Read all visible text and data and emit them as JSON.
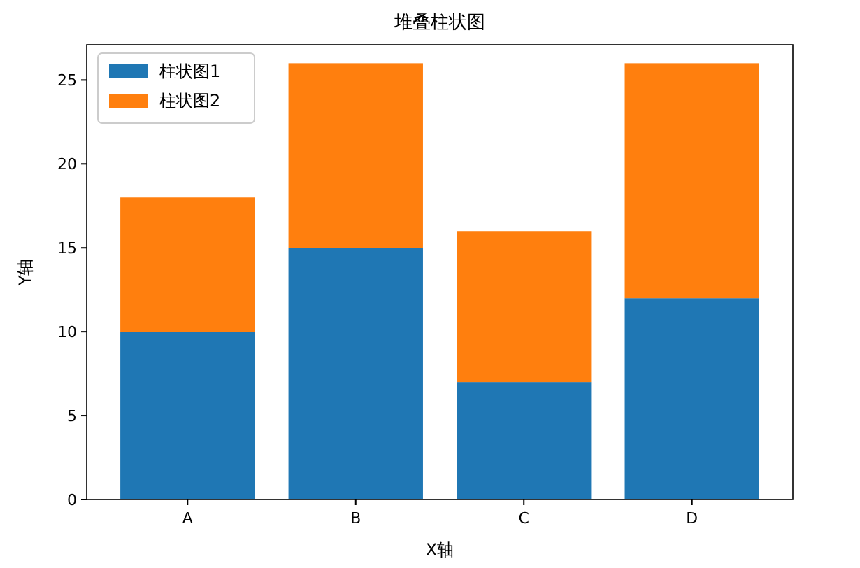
{
  "chart_data": {
    "type": "bar",
    "title": "堆叠柱状图",
    "xlabel": "X轴",
    "ylabel": "Y轴",
    "categories": [
      "A",
      "B",
      "C",
      "D"
    ],
    "stacked": true,
    "series": [
      {
        "name": "柱状图1",
        "color": "#1f77b4",
        "values": [
          10,
          15,
          7,
          12
        ]
      },
      {
        "name": "柱状图2",
        "color": "#ff7f0e",
        "values": [
          8,
          11,
          9,
          14
        ]
      }
    ],
    "ylim": [
      0,
      27.1
    ],
    "yticks": [
      0,
      5,
      10,
      15,
      20,
      25
    ],
    "legend": "top left",
    "grid": false
  }
}
